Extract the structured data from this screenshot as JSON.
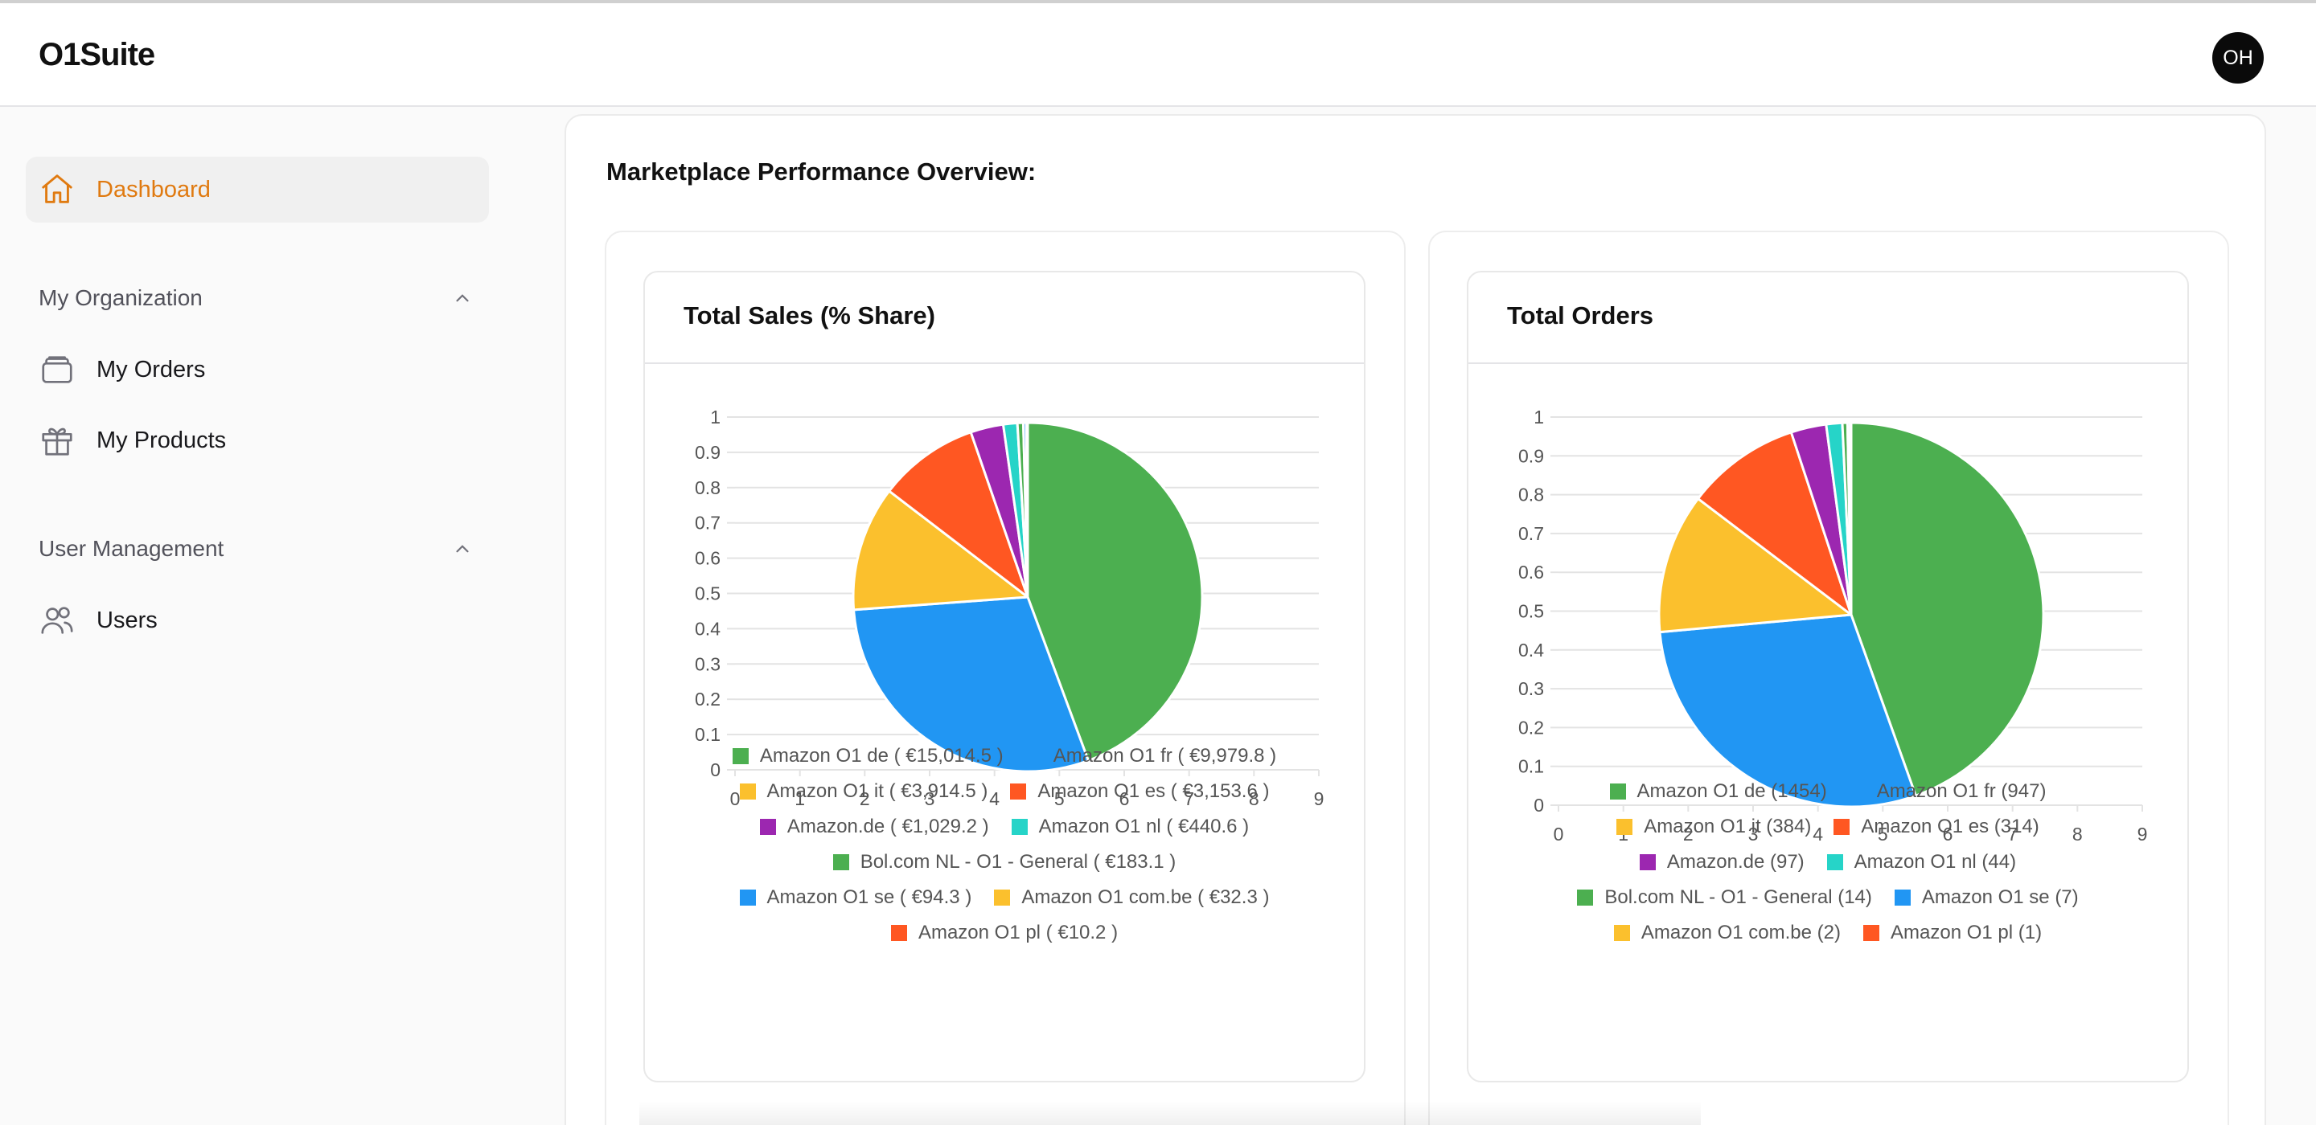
{
  "app": {
    "title": "O1Suite",
    "avatar_initials": "OH"
  },
  "sidebar": {
    "dashboard": {
      "label": "Dashboard",
      "icon": "home-icon"
    },
    "sections": [
      {
        "label": "My Organization",
        "items": [
          {
            "label": "My Orders",
            "icon": "box-icon"
          },
          {
            "label": "My Products",
            "icon": "gift-icon"
          }
        ]
      },
      {
        "label": "User Management",
        "items": [
          {
            "label": "Users",
            "icon": "users-icon"
          }
        ]
      }
    ]
  },
  "main": {
    "title": "Marketplace Performance Overview:"
  },
  "colors": {
    "accent": "#e07a10",
    "green": "#4caf50",
    "blue": "#2196f3",
    "yellow": "#fbc02d",
    "red": "#ff5722",
    "purple": "#9c27b0",
    "cyan": "#26d4c8"
  },
  "chart_data": [
    {
      "type": "pie",
      "title": "Total Sales (% Share)",
      "axes": {
        "x_ticks": [
          0,
          1,
          2,
          3,
          4,
          5,
          6,
          7,
          8,
          9
        ],
        "y_ticks": [
          0,
          0.1,
          0.2,
          0.3,
          0.4,
          0.5,
          0.6,
          0.7,
          0.8,
          0.9,
          1
        ],
        "xlim": [
          0,
          9
        ],
        "ylim": [
          0,
          1
        ],
        "grid": true
      },
      "slices": [
        {
          "label": "Amazon O1 de",
          "value": 15014.5,
          "display": "Amazon O1 de ( €15,014.5 )",
          "color": "#4caf50"
        },
        {
          "label": "Amazon O1 fr",
          "value": 9979.8,
          "display": "Amazon O1 fr ( €9,979.8 )",
          "color": "#2196f3"
        },
        {
          "label": "Amazon O1 it",
          "value": 3914.5,
          "display": "Amazon O1 it ( €3,914.5 )",
          "color": "#fbc02d"
        },
        {
          "label": "Amazon O1 es",
          "value": 3153.6,
          "display": "Amazon O1 es ( €3,153.6 )",
          "color": "#ff5722"
        },
        {
          "label": "Amazon.de",
          "value": 1029.2,
          "display": "Amazon.de ( €1,029.2 )",
          "color": "#9c27b0"
        },
        {
          "label": "Amazon O1 nl",
          "value": 440.6,
          "display": "Amazon O1 nl ( €440.6 )",
          "color": "#26d4c8"
        },
        {
          "label": "Bol.com NL - O1 - General",
          "value": 183.1,
          "display": "Bol.com NL - O1 - General ( €183.1 )",
          "color": "#4caf50"
        },
        {
          "label": "Amazon O1 se",
          "value": 94.3,
          "display": "Amazon O1 se ( €94.3 )",
          "color": "#2196f3"
        },
        {
          "label": "Amazon O1 com.be",
          "value": 32.3,
          "display": "Amazon O1 com.be ( €32.3 )",
          "color": "#fbc02d"
        },
        {
          "label": "Amazon O1 pl",
          "value": 10.2,
          "display": "Amazon O1 pl ( €10.2 )",
          "color": "#ff5722"
        }
      ],
      "legend_rows": [
        [
          0,
          1
        ],
        [
          2,
          3
        ],
        [
          4,
          5
        ],
        [
          6
        ],
        [
          7,
          8
        ],
        [
          9
        ]
      ]
    },
    {
      "type": "pie",
      "title": "Total Orders",
      "axes": {
        "x_ticks": [
          0,
          1,
          2,
          3,
          4,
          5,
          6,
          7,
          8,
          9
        ],
        "y_ticks": [
          0,
          0.1,
          0.2,
          0.3,
          0.4,
          0.5,
          0.6,
          0.7,
          0.8,
          0.9,
          1
        ],
        "xlim": [
          0,
          9
        ],
        "ylim": [
          0,
          1
        ],
        "grid": true
      },
      "slices": [
        {
          "label": "Amazon O1 de",
          "value": 1454,
          "display": "Amazon O1 de (1454)",
          "color": "#4caf50"
        },
        {
          "label": "Amazon O1 fr",
          "value": 947,
          "display": "Amazon O1 fr (947)",
          "color": "#2196f3"
        },
        {
          "label": "Amazon O1 it",
          "value": 384,
          "display": "Amazon O1 it (384)",
          "color": "#fbc02d"
        },
        {
          "label": "Amazon O1 es",
          "value": 314,
          "display": "Amazon O1 es (314)",
          "color": "#ff5722"
        },
        {
          "label": "Amazon.de",
          "value": 97,
          "display": "Amazon.de (97)",
          "color": "#9c27b0"
        },
        {
          "label": "Amazon O1 nl",
          "value": 44,
          "display": "Amazon O1 nl (44)",
          "color": "#26d4c8"
        },
        {
          "label": "Bol.com NL - O1 - General",
          "value": 14,
          "display": "Bol.com NL - O1 - General (14)",
          "color": "#4caf50"
        },
        {
          "label": "Amazon O1 se",
          "value": 7,
          "display": "Amazon O1 se (7)",
          "color": "#2196f3"
        },
        {
          "label": "Amazon O1 com.be",
          "value": 2,
          "display": "Amazon O1 com.be (2)",
          "color": "#fbc02d"
        },
        {
          "label": "Amazon O1 pl",
          "value": 1,
          "display": "Amazon O1 pl (1)",
          "color": "#ff5722"
        }
      ],
      "legend_rows": [
        [
          0,
          1
        ],
        [
          2,
          3
        ],
        [
          4,
          5
        ],
        [
          6,
          7
        ],
        [
          8,
          9
        ]
      ]
    }
  ]
}
